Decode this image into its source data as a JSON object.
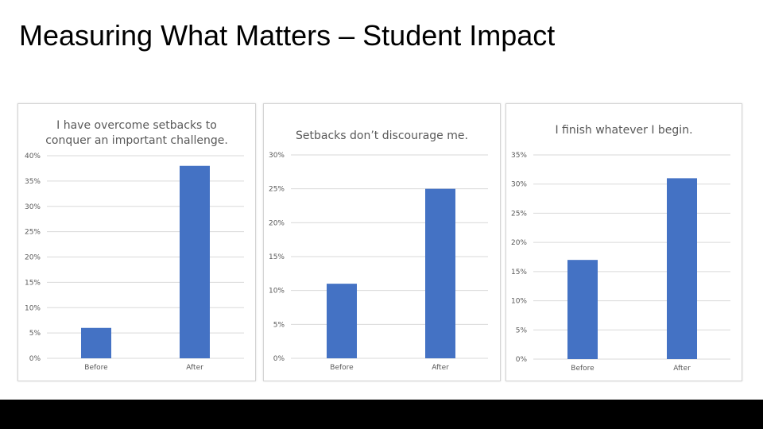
{
  "slide": {
    "title": "Measuring What Matters – Student Impact"
  },
  "colors": {
    "bar": "#4472C4",
    "grid": "#D9D9D9",
    "axis_text": "#595959",
    "title_text": "#595959"
  },
  "chart_data": [
    {
      "type": "bar",
      "title_lines": [
        "I have overcome setbacks to",
        "conquer an important challenge."
      ],
      "categories": [
        "Before",
        "After"
      ],
      "values": [
        6,
        38
      ],
      "ylim": [
        0,
        40
      ],
      "ytick_step": 5,
      "ytick_labels": [
        "0%",
        "5%",
        "10%",
        "15%",
        "20%",
        "25%",
        "30%",
        "35%",
        "40%"
      ],
      "grid": true,
      "legend": "none"
    },
    {
      "type": "bar",
      "title_lines": [
        "Setbacks don’t discourage me."
      ],
      "categories": [
        "Before",
        "After"
      ],
      "values": [
        11,
        25
      ],
      "ylim": [
        0,
        30
      ],
      "ytick_step": 5,
      "ytick_labels": [
        "0%",
        "5%",
        "10%",
        "15%",
        "20%",
        "25%",
        "30%"
      ],
      "grid": true,
      "legend": "none"
    },
    {
      "type": "bar",
      "title_lines": [
        "I finish whatever I begin."
      ],
      "categories": [
        "Before",
        "After"
      ],
      "values": [
        17,
        31
      ],
      "ylim": [
        0,
        35
      ],
      "ytick_step": 5,
      "ytick_labels": [
        "0%",
        "5%",
        "10%",
        "15%",
        "20%",
        "25%",
        "30%",
        "35%"
      ],
      "grid": true,
      "legend": "none"
    }
  ]
}
